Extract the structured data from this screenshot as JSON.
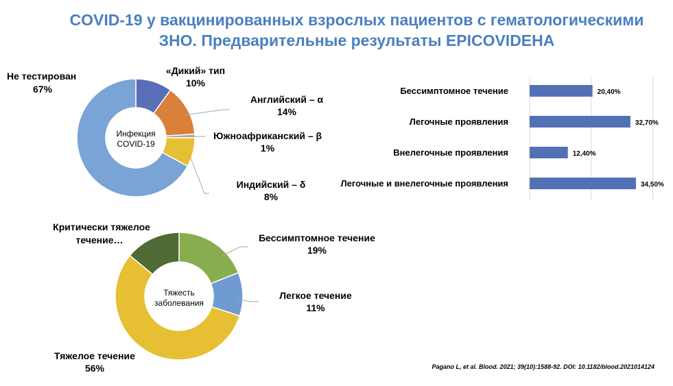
{
  "title": {
    "line1": "COVID-19 у вакцинированных взрослых пациентов с гематологическими",
    "line2": "ЗНО. Предварительные результаты EPICOVIDEHA"
  },
  "citation": "Pagano L, et al. Blood. 2021; 39(10):1588-92. DOI: 10.1182/blood.2021014124",
  "chart_data": [
    {
      "type": "pie",
      "variant": "donut",
      "center_label": [
        "Инфекция",
        "COVID-19"
      ],
      "slices": [
        {
          "name": "«Дикий» тип",
          "value": 10,
          "label": "10%",
          "color": "#5b6fb8"
        },
        {
          "name": "Английский – α",
          "value": 14,
          "label": "14%",
          "color": "#d9803a"
        },
        {
          "name": "Южноафриканский – β",
          "value": 1,
          "label": "1%",
          "color": "#a6a6a6"
        },
        {
          "name": "Индийский – δ",
          "value": 8,
          "label": "8%",
          "color": "#e6bf33"
        },
        {
          "name": "Не тестирован",
          "value": 67,
          "label": "67%",
          "color": "#7aa3d6"
        }
      ]
    },
    {
      "type": "bar",
      "orientation": "horizontal",
      "categories": [
        "Бессимптомное течение",
        "Легочные проявления",
        "Внелегочные проявления",
        "Легочные и внелегочные проявления"
      ],
      "values": [
        20.4,
        32.7,
        12.4,
        34.5
      ],
      "value_labels": [
        "20,40%",
        "32,70%",
        "12,40%",
        "34,50%"
      ],
      "xlim": [
        0,
        40
      ],
      "grid": true,
      "bar_color": "#5470b5"
    },
    {
      "type": "pie",
      "variant": "donut",
      "center_label": [
        "Тяжесть",
        "заболевания"
      ],
      "slices": [
        {
          "name": "Бессимптомное течение",
          "value": 19,
          "label": "19%",
          "color": "#88ad4e"
        },
        {
          "name": "Легкое течение",
          "value": 11,
          "label": "11%",
          "color": "#6f9bd2"
        },
        {
          "name": "Тяжелое течение",
          "value": 56,
          "label": "56%",
          "color": "#e6bf33"
        },
        {
          "name": "Критически тяжелое течение…",
          "value": 14,
          "label": "",
          "color": "#4f6a35"
        }
      ]
    }
  ]
}
